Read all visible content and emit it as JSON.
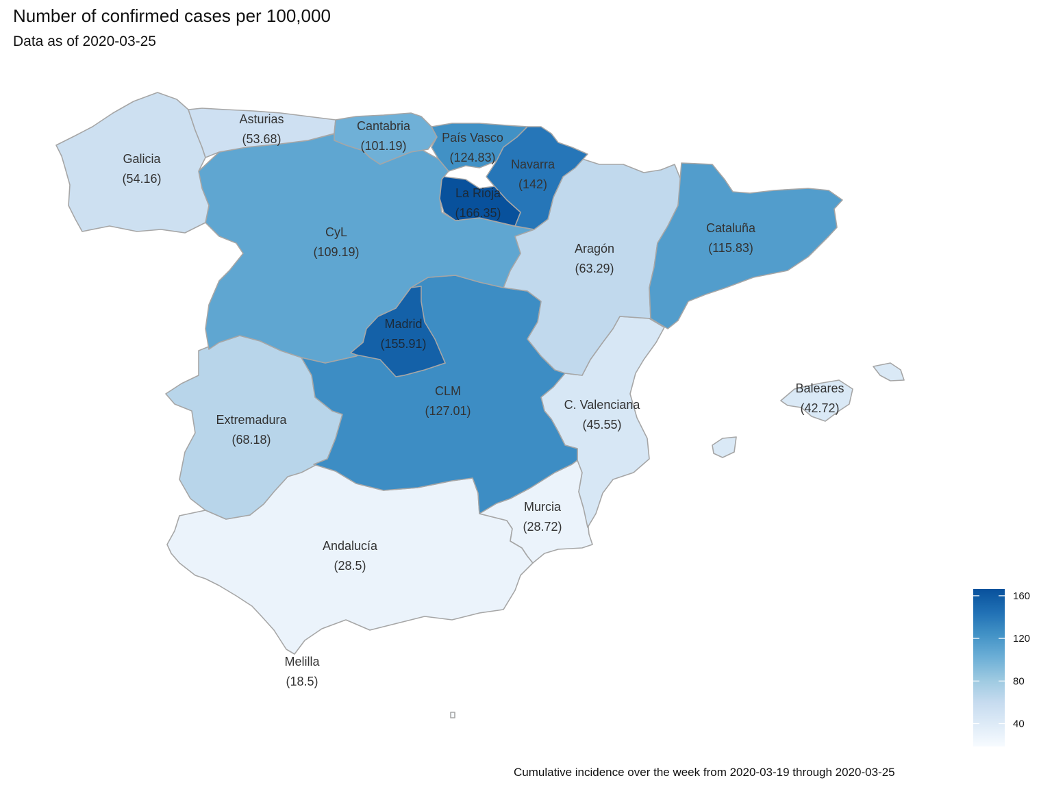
{
  "title": "Number of confirmed cases per 100,000",
  "subtitle": "Data as of 2020-03-25",
  "caption": "Cumulative incidence over the week from 2020-03-19 through 2020-03-25",
  "regions": [
    {
      "id": "galicia",
      "name": "Galicia",
      "value": 54.16,
      "value_text": "(54.16)"
    },
    {
      "id": "asturias",
      "name": "Asturias",
      "value": 53.68,
      "value_text": "(53.68)"
    },
    {
      "id": "cantabria",
      "name": "Cantabria",
      "value": 101.19,
      "value_text": "(101.19)"
    },
    {
      "id": "pais-vasco",
      "name": "País Vasco",
      "value": 124.83,
      "value_text": "(124.83)"
    },
    {
      "id": "navarra",
      "name": "Navarra",
      "value": 142,
      "value_text": "(142)"
    },
    {
      "id": "la-rioja",
      "name": "La Rioja",
      "value": 166.35,
      "value_text": "(166.35)"
    },
    {
      "id": "cyl",
      "name": "CyL",
      "value": 109.19,
      "value_text": "(109.19)"
    },
    {
      "id": "aragon",
      "name": "Aragón",
      "value": 63.29,
      "value_text": "(63.29)"
    },
    {
      "id": "cataluna",
      "name": "Cataluña",
      "value": 115.83,
      "value_text": "(115.83)"
    },
    {
      "id": "madrid",
      "name": "Madrid",
      "value": 155.91,
      "value_text": "(155.91)"
    },
    {
      "id": "clm",
      "name": "CLM",
      "value": 127.01,
      "value_text": "(127.01)"
    },
    {
      "id": "extremadura",
      "name": "Extremadura",
      "value": 68.18,
      "value_text": "(68.18)"
    },
    {
      "id": "c-valenciana",
      "name": "C. Valenciana",
      "value": 45.55,
      "value_text": "(45.55)"
    },
    {
      "id": "baleares",
      "name": "Baleares",
      "value": 42.72,
      "value_text": "(42.72)"
    },
    {
      "id": "murcia",
      "name": "Murcia",
      "value": 28.72,
      "value_text": "(28.72)"
    },
    {
      "id": "andalucia",
      "name": "Andalucía",
      "value": 28.5,
      "value_text": "(28.5)"
    },
    {
      "id": "melilla",
      "name": "Melilla",
      "value": 18.5,
      "value_text": "(18.5)"
    }
  ],
  "legend": {
    "min": 18.5,
    "max": 166.35,
    "ticks": [
      40,
      80,
      120,
      160
    ],
    "color_low": "#f7fbff",
    "color_high": "#08306b",
    "palette": [
      "#f7fbff",
      "#deebf7",
      "#c6dbef",
      "#9ecae1",
      "#6baed6",
      "#4292c6",
      "#2171b5",
      "#08519c"
    ]
  }
}
